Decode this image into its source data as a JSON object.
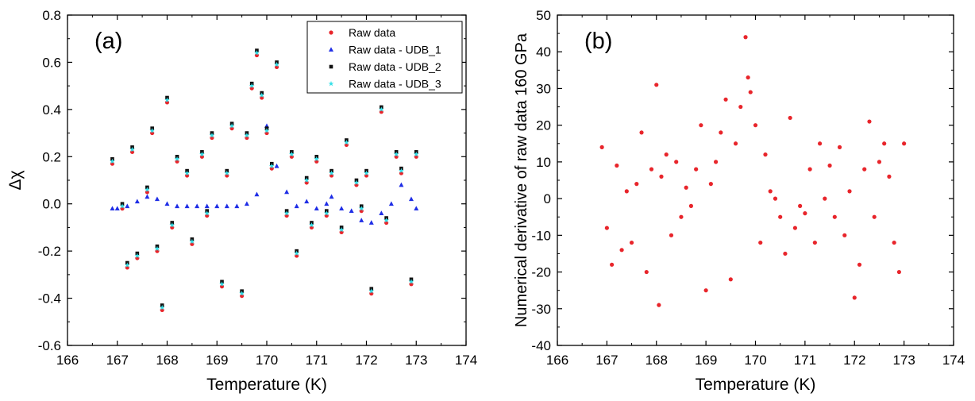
{
  "chart_data": [
    {
      "type": "scatter",
      "panel_label": "(a)",
      "xlabel": "Temperature (K)",
      "ylabel": "Δχ",
      "xlim": [
        166,
        174
      ],
      "ylim": [
        -0.6,
        0.8
      ],
      "xticks": [
        166,
        167,
        168,
        169,
        170,
        171,
        172,
        173,
        174
      ],
      "yticks": [
        -0.6,
        -0.4,
        -0.2,
        0.0,
        0.2,
        0.4,
        0.6,
        0.8
      ],
      "ytick_labels": [
        "-0.6",
        "-0.4",
        "-0.2",
        "0.0",
        "0.2",
        "0.4",
        "0.6",
        "0.8"
      ],
      "legend_position": "top-right",
      "series": [
        {
          "name": "Raw data",
          "marker": "circle",
          "color": "#e8252b",
          "x": [
            166.9,
            167.1,
            167.2,
            167.3,
            167.4,
            167.6,
            167.7,
            167.8,
            167.9,
            168.0,
            168.1,
            168.2,
            168.4,
            168.5,
            168.7,
            168.8,
            168.9,
            169.1,
            169.2,
            169.3,
            169.5,
            169.6,
            169.7,
            169.8,
            169.9,
            170.0,
            170.1,
            170.2,
            170.4,
            170.5,
            170.6,
            170.8,
            170.9,
            171.0,
            171.2,
            171.3,
            171.5,
            171.6,
            171.8,
            171.9,
            172.0,
            172.1,
            172.3,
            172.4,
            172.6,
            172.7,
            172.9,
            173.0
          ],
          "y": [
            0.17,
            -0.02,
            -0.27,
            0.22,
            -0.23,
            0.05,
            0.3,
            -0.2,
            -0.45,
            0.43,
            -0.1,
            0.18,
            0.12,
            -0.17,
            0.2,
            -0.05,
            0.28,
            -0.35,
            0.12,
            0.32,
            -0.39,
            0.28,
            0.49,
            0.63,
            0.45,
            0.3,
            0.15,
            0.58,
            -0.05,
            0.2,
            -0.22,
            0.09,
            -0.1,
            0.18,
            -0.05,
            0.12,
            -0.12,
            0.25,
            0.08,
            -0.03,
            0.12,
            -0.38,
            0.39,
            -0.08,
            0.2,
            0.13,
            -0.34,
            0.2
          ]
        },
        {
          "name": "Raw data - UDB_1",
          "marker": "triangle",
          "color": "#1f2ee6",
          "x": [
            166.9,
            167.0,
            167.2,
            167.4,
            167.6,
            167.8,
            168.0,
            168.2,
            168.4,
            168.6,
            168.8,
            169.0,
            169.2,
            169.4,
            169.6,
            169.8,
            170.0,
            170.2,
            170.4,
            170.6,
            170.8,
            171.0,
            171.2,
            171.3,
            171.5,
            171.7,
            171.9,
            172.1,
            172.3,
            172.5,
            172.7,
            172.9,
            173.0
          ],
          "y": [
            -0.02,
            -0.02,
            -0.01,
            0.01,
            0.03,
            0.02,
            0.0,
            -0.01,
            -0.01,
            -0.01,
            -0.01,
            -0.01,
            -0.01,
            -0.01,
            0.0,
            0.04,
            0.33,
            0.16,
            0.05,
            -0.01,
            0.01,
            -0.02,
            0.0,
            0.03,
            -0.02,
            -0.03,
            -0.07,
            -0.08,
            -0.04,
            0.0,
            0.08,
            0.02,
            -0.02
          ]
        },
        {
          "name": "Raw data - UDB_2",
          "marker": "square",
          "color": "#111111",
          "x": [
            166.9,
            167.1,
            167.2,
            167.3,
            167.4,
            167.6,
            167.7,
            167.8,
            167.9,
            168.0,
            168.1,
            168.2,
            168.4,
            168.5,
            168.7,
            168.8,
            168.9,
            169.1,
            169.2,
            169.3,
            169.5,
            169.6,
            169.7,
            169.8,
            169.9,
            170.0,
            170.1,
            170.2,
            170.4,
            170.5,
            170.6,
            170.8,
            170.9,
            171.0,
            171.2,
            171.3,
            171.5,
            171.6,
            171.8,
            171.9,
            172.0,
            172.1,
            172.3,
            172.4,
            172.6,
            172.7,
            172.9,
            173.0
          ],
          "y": [
            0.19,
            0.0,
            -0.25,
            0.24,
            -0.21,
            0.07,
            0.32,
            -0.18,
            -0.43,
            0.45,
            -0.08,
            0.2,
            0.14,
            -0.15,
            0.22,
            -0.03,
            0.3,
            -0.33,
            0.14,
            0.34,
            -0.37,
            0.3,
            0.51,
            0.65,
            0.47,
            0.32,
            0.17,
            0.6,
            -0.03,
            0.22,
            -0.2,
            0.11,
            -0.08,
            0.2,
            -0.03,
            0.14,
            -0.1,
            0.27,
            0.1,
            -0.01,
            0.14,
            -0.36,
            0.41,
            -0.06,
            0.22,
            0.15,
            -0.32,
            0.22
          ]
        },
        {
          "name": "Raw data - UDB_3",
          "marker": "star",
          "color": "#34e0e8",
          "x": [
            166.9,
            167.1,
            167.2,
            167.3,
            167.4,
            167.6,
            167.7,
            167.8,
            167.9,
            168.0,
            168.1,
            168.2,
            168.4,
            168.5,
            168.7,
            168.8,
            168.9,
            169.1,
            169.2,
            169.3,
            169.5,
            169.6,
            169.7,
            169.8,
            169.9,
            170.0,
            170.1,
            170.2,
            170.4,
            170.5,
            170.6,
            170.8,
            170.9,
            171.0,
            171.2,
            171.3,
            171.5,
            171.6,
            171.8,
            171.9,
            172.0,
            172.1,
            172.3,
            172.4,
            172.6,
            172.7,
            172.9,
            173.0
          ],
          "y": [
            0.18,
            -0.01,
            -0.26,
            0.23,
            -0.22,
            0.06,
            0.31,
            -0.19,
            -0.44,
            0.44,
            -0.09,
            0.19,
            0.13,
            -0.16,
            0.21,
            -0.04,
            0.29,
            -0.34,
            0.13,
            0.33,
            -0.38,
            0.29,
            0.5,
            0.64,
            0.46,
            0.31,
            0.16,
            0.59,
            -0.04,
            0.21,
            -0.21,
            0.1,
            -0.09,
            0.19,
            -0.04,
            0.13,
            -0.11,
            0.26,
            0.09,
            -0.02,
            0.13,
            -0.37,
            0.4,
            -0.07,
            0.21,
            0.14,
            -0.33,
            0.21
          ]
        }
      ]
    },
    {
      "type": "scatter",
      "panel_label": "(b)",
      "xlabel": "Temperature (K)",
      "ylabel": "Numerical derivative of raw data 160 GPa",
      "xlim": [
        166,
        174
      ],
      "ylim": [
        -40,
        50
      ],
      "xticks": [
        166,
        167,
        168,
        169,
        170,
        171,
        172,
        173,
        174
      ],
      "yticks": [
        -40,
        -30,
        -20,
        -10,
        0,
        10,
        20,
        30,
        40,
        50
      ],
      "series": [
        {
          "marker": "circle",
          "color": "#e8252b",
          "x": [
            166.9,
            167.0,
            167.1,
            167.2,
            167.3,
            167.4,
            167.5,
            167.6,
            167.7,
            167.8,
            167.9,
            168.0,
            168.05,
            168.1,
            168.2,
            168.3,
            168.4,
            168.5,
            168.6,
            168.7,
            168.8,
            168.9,
            169.0,
            169.1,
            169.2,
            169.3,
            169.4,
            169.5,
            169.6,
            169.7,
            169.8,
            169.85,
            169.9,
            170.0,
            170.1,
            170.2,
            170.3,
            170.4,
            170.5,
            170.6,
            170.7,
            170.8,
            170.9,
            171.0,
            171.1,
            171.2,
            171.3,
            171.4,
            171.5,
            171.6,
            171.7,
            171.8,
            171.9,
            172.0,
            172.1,
            172.2,
            172.3,
            172.4,
            172.5,
            172.6,
            172.7,
            172.8,
            172.9,
            173.0
          ],
          "y": [
            14,
            -8,
            -18,
            9,
            -14,
            2,
            -12,
            4,
            18,
            -20,
            8,
            31,
            -29,
            6,
            12,
            -10,
            10,
            -5,
            3,
            -2,
            8,
            20,
            -25,
            4,
            10,
            18,
            27,
            -22,
            15,
            25,
            44,
            33,
            29,
            20,
            -12,
            12,
            2,
            0,
            -5,
            -15,
            22,
            -8,
            -2,
            -4,
            8,
            -12,
            15,
            0,
            9,
            -5,
            14,
            -10,
            2,
            -27,
            -18,
            8,
            21,
            -5,
            10,
            15,
            6,
            -12,
            -20,
            15
          ]
        }
      ]
    }
  ]
}
